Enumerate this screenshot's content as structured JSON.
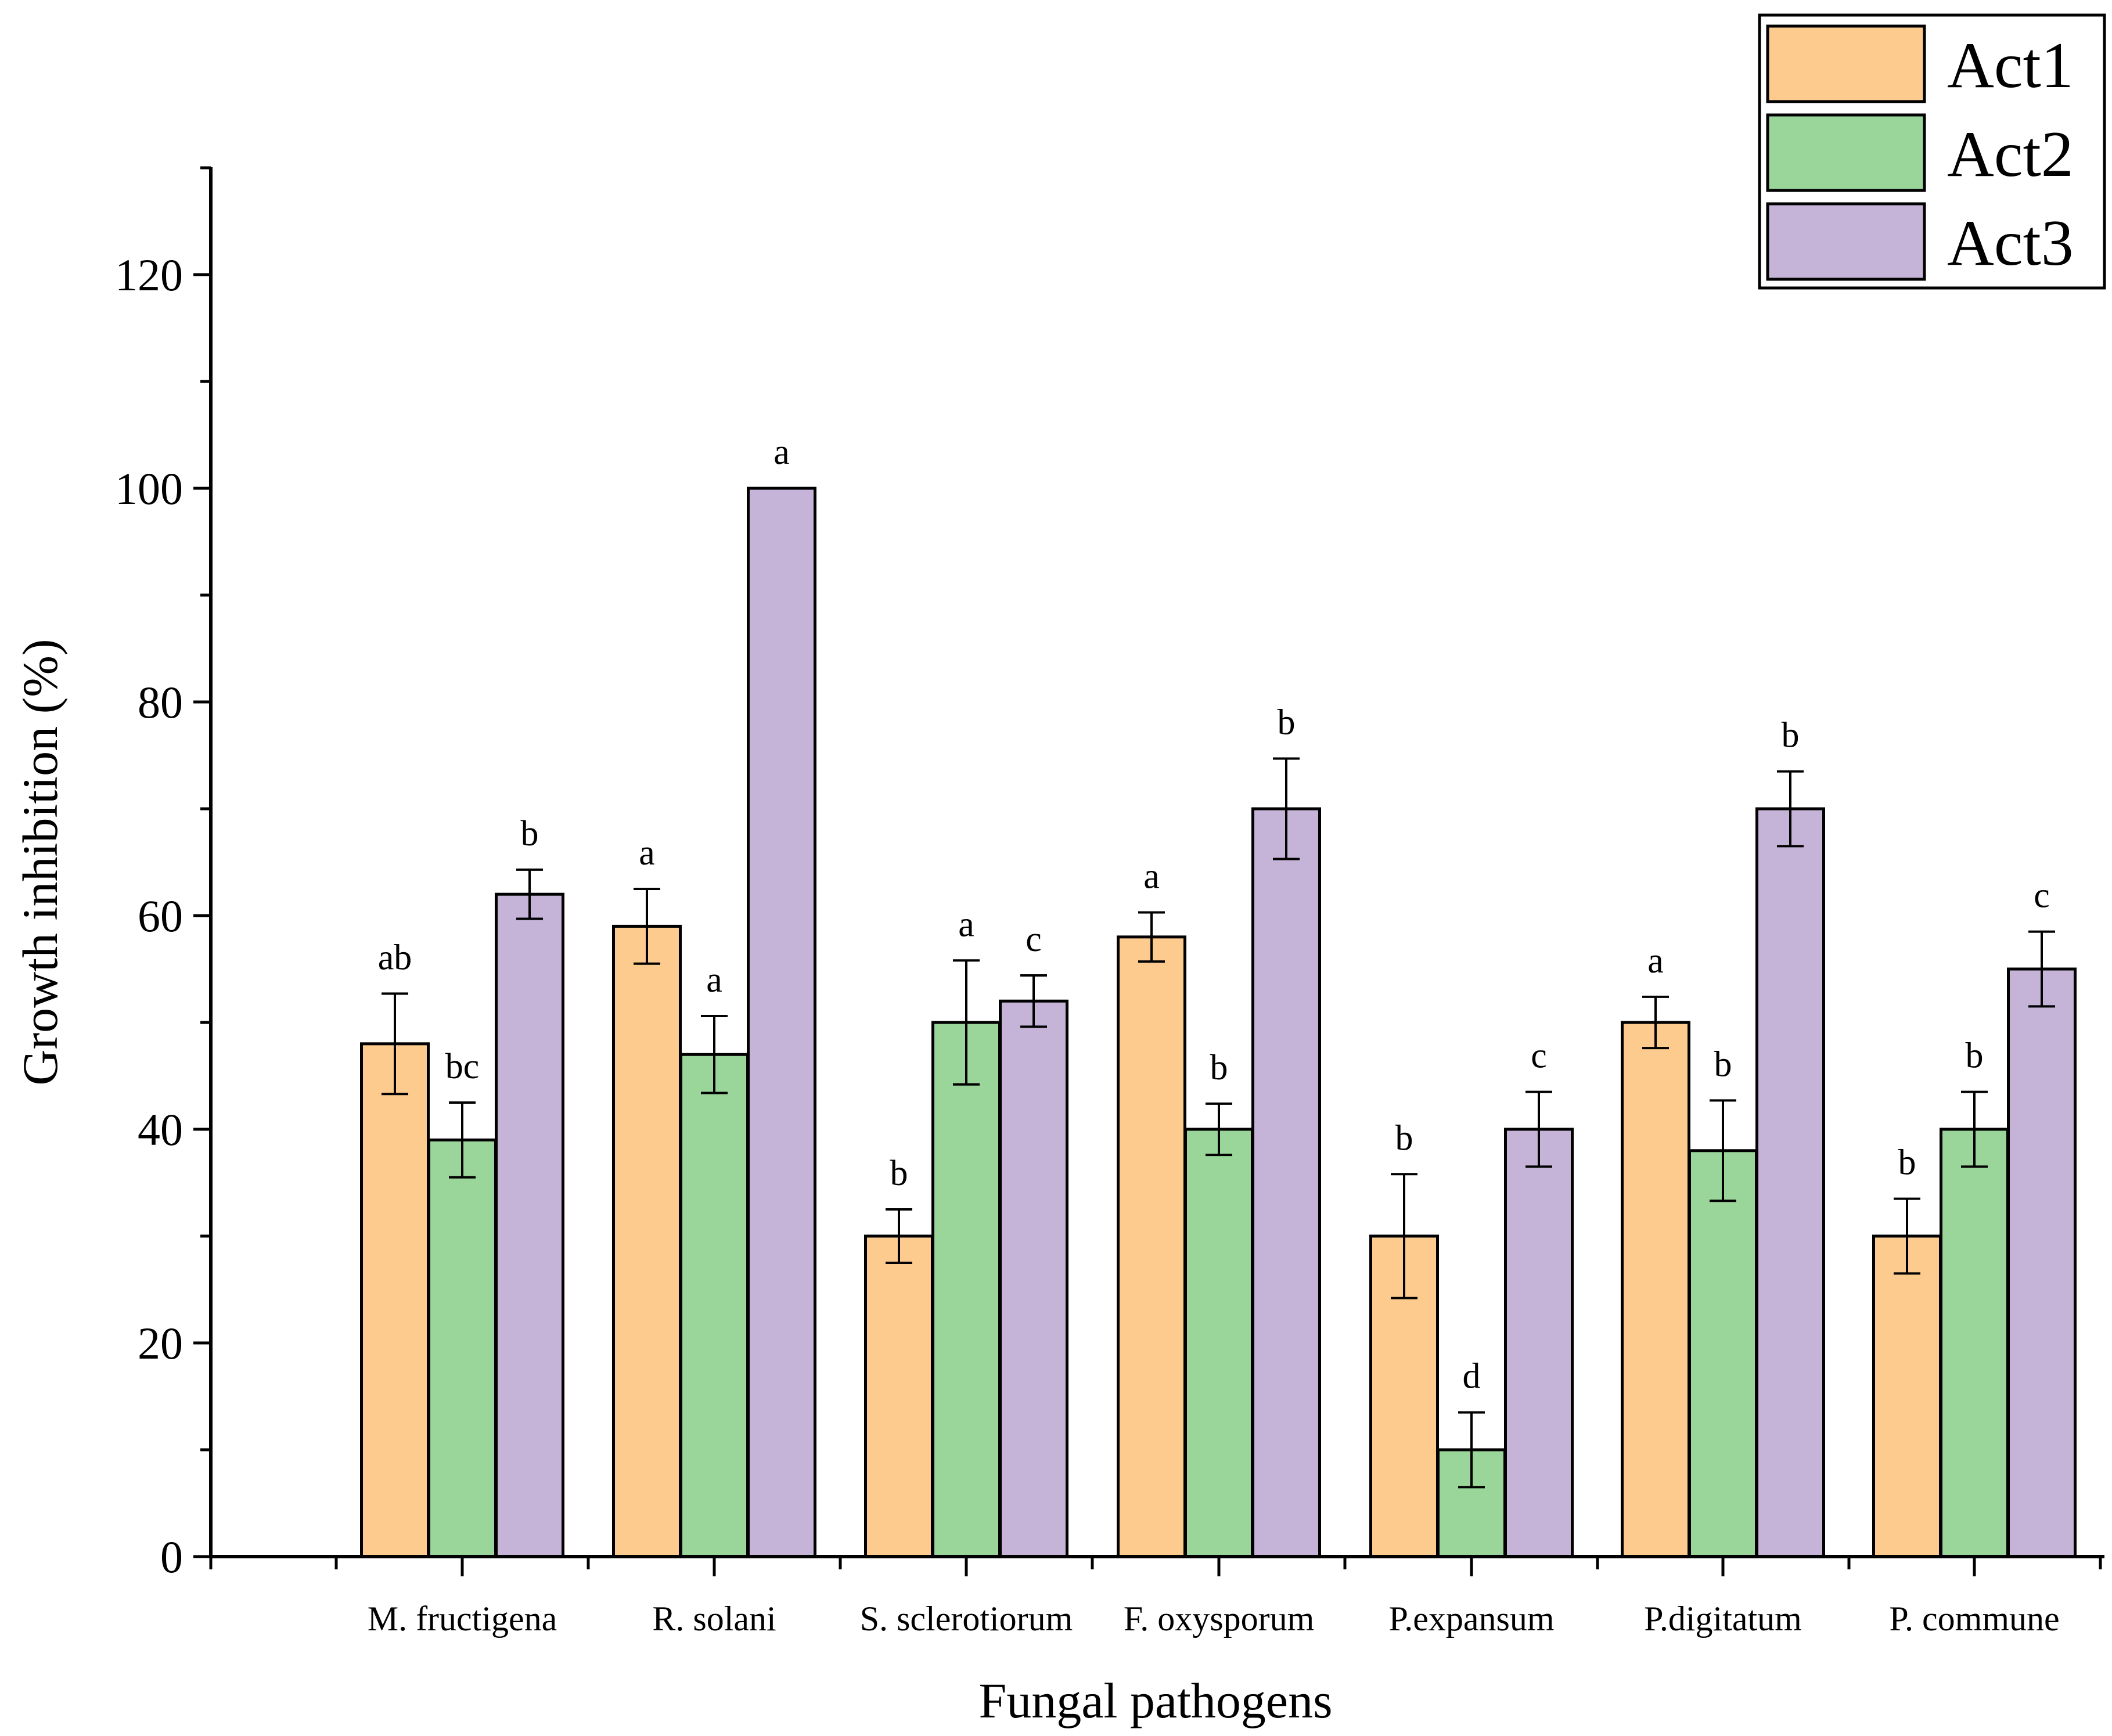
{
  "chart_data": {
    "type": "bar",
    "xlabel": "Fungal pathogens",
    "ylabel": "Growth inhibition (%)",
    "ylim": [
      0,
      130
    ],
    "yticks": [
      "0",
      "20",
      "40",
      "60",
      "80",
      "100",
      "120"
    ],
    "grid": false,
    "legend_position": "top-right",
    "categories": [
      "M. fructigena",
      "R. solani",
      "S. sclerotiorum",
      "F. oxysporum",
      "P.expansum",
      "P.digitatum",
      "P. commune"
    ],
    "series": [
      {
        "name": "Act1",
        "color": "#FDCB8E",
        "values": [
          48,
          59,
          30,
          58,
          30,
          50,
          30
        ],
        "errors": [
          4.7,
          3.5,
          2.5,
          2.3,
          5.8,
          2.4,
          3.5
        ],
        "letters": [
          "ab",
          "a",
          "b",
          "a",
          "b",
          "a",
          "b"
        ]
      },
      {
        "name": "Act2",
        "color": "#9AD59A",
        "values": [
          39,
          47,
          50,
          40,
          10,
          38,
          40
        ],
        "errors": [
          3.5,
          3.6,
          5.8,
          2.4,
          3.5,
          4.7,
          3.5
        ],
        "letters": [
          "bc",
          "a",
          "a",
          "b",
          "d",
          "b",
          "b"
        ]
      },
      {
        "name": "Act3",
        "color": "#C6B3D8",
        "values": [
          62,
          100,
          52,
          70,
          40,
          70,
          55
        ],
        "errors": [
          2.3,
          0,
          2.4,
          4.7,
          3.5,
          3.5,
          3.5
        ],
        "letters": [
          "b",
          "a",
          "c",
          "b",
          "c",
          "b",
          "c"
        ]
      }
    ]
  }
}
